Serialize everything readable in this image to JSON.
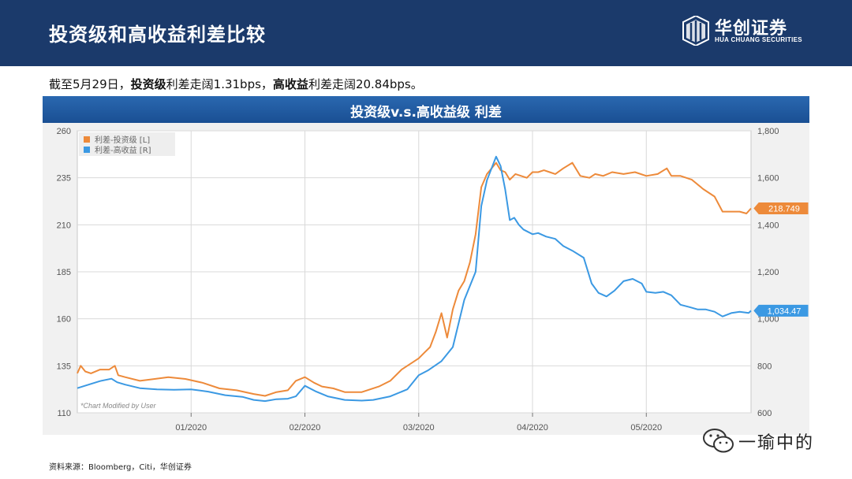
{
  "header": {
    "title": "投资级和高收益利差比较",
    "logo_cn": "华创证券",
    "logo_en": "HUA CHUANG SECURITIES"
  },
  "summary": {
    "prefix": "截至5月29日，",
    "ig_label": "投资级",
    "ig_text": "利差走阔1.31bps，",
    "hy_label": "高收益",
    "hy_text": "利差走阔20.84bps。"
  },
  "chart_title": "投资级v.s.高收益级 利差",
  "source": "资料来源：Bloomberg，Citi，华创证券",
  "watermark": "一瑜中的",
  "colors": {
    "ig": "#ed8a3a",
    "hy": "#3b99e3",
    "header": "#1b3a6b"
  },
  "chart_data": {
    "type": "line",
    "x_ticks": [
      "01/2020",
      "02/2020",
      "03/2020",
      "04/2020",
      "05/2020"
    ],
    "x_tick_pos": [
      1,
      2,
      3,
      4,
      5
    ],
    "x_range": [
      0,
      5.92
    ],
    "y_left": {
      "ticks": [
        "260",
        "235",
        "210",
        "185",
        "160",
        "135",
        "110"
      ],
      "ylim": [
        110,
        260
      ]
    },
    "y_right": {
      "ticks": [
        "1,800",
        "1,600",
        "1,400",
        "1,200",
        "1,000",
        "800",
        "600"
      ],
      "ylim": [
        600,
        1800
      ]
    },
    "legend": [
      "利差-投资级 [L]",
      "利差-高收益 [R]"
    ],
    "legend_position": "top-left",
    "annotation": "*Chart Modified by User",
    "last_labels": {
      "ig": "218.749",
      "hy": "1,034.47"
    },
    "series": [
      {
        "name": "利差-投资级 [L]",
        "axis": "left",
        "x": [
          0,
          0.03,
          0.07,
          0.12,
          0.2,
          0.28,
          0.33,
          0.36,
          0.42,
          0.55,
          0.68,
          0.8,
          0.95,
          1.1,
          1.25,
          1.4,
          1.55,
          1.65,
          1.75,
          1.85,
          1.92,
          2.0,
          2.08,
          2.15,
          2.25,
          2.35,
          2.5,
          2.65,
          2.75,
          2.85,
          2.95,
          3.0,
          3.05,
          3.1,
          3.15,
          3.2,
          3.25,
          3.3,
          3.35,
          3.4,
          3.45,
          3.5,
          3.55,
          3.6,
          3.64,
          3.68,
          3.72,
          3.76,
          3.8,
          3.85,
          3.9,
          3.95,
          4.0,
          4.05,
          4.1,
          4.15,
          4.2,
          4.27,
          4.35,
          4.42,
          4.5,
          4.55,
          4.62,
          4.7,
          4.8,
          4.9,
          5.0,
          5.1,
          5.18,
          5.22,
          5.3,
          5.4,
          5.5,
          5.6,
          5.67,
          5.75,
          5.82,
          5.88,
          5.92
        ],
        "y": [
          131,
          135,
          132,
          131,
          133,
          133,
          135,
          130,
          129,
          127,
          128,
          129,
          128,
          126,
          123,
          122,
          120,
          119,
          121,
          122,
          127,
          129,
          126,
          124,
          123,
          121,
          121,
          124,
          127,
          133,
          137,
          139,
          142,
          145,
          153,
          163,
          150,
          165,
          175,
          180,
          190,
          205,
          230,
          237,
          240,
          243,
          239,
          238,
          234,
          237,
          236,
          235,
          238,
          238,
          239,
          238,
          237,
          240,
          243,
          236,
          235,
          237,
          236,
          238,
          237,
          238,
          236,
          237,
          240,
          236,
          236,
          234,
          229,
          225,
          217,
          217,
          217,
          216,
          218.749
        ]
      },
      {
        "name": "利差-高收益 [R]",
        "axis": "right",
        "x": [
          0,
          0.1,
          0.2,
          0.3,
          0.35,
          0.42,
          0.55,
          0.7,
          0.85,
          1.0,
          1.15,
          1.3,
          1.45,
          1.55,
          1.65,
          1.75,
          1.85,
          1.92,
          2.0,
          2.1,
          2.2,
          2.35,
          2.5,
          2.6,
          2.75,
          2.9,
          3.0,
          3.08,
          3.2,
          3.3,
          3.4,
          3.5,
          3.55,
          3.6,
          3.64,
          3.68,
          3.72,
          3.76,
          3.8,
          3.84,
          3.88,
          3.92,
          3.96,
          4.0,
          4.05,
          4.12,
          4.2,
          4.27,
          4.35,
          4.45,
          4.52,
          4.58,
          4.65,
          4.72,
          4.8,
          4.88,
          4.96,
          5.0,
          5.08,
          5.15,
          5.22,
          5.3,
          5.38,
          5.45,
          5.52,
          5.6,
          5.67,
          5.75,
          5.82,
          5.9,
          5.92
        ],
        "y": [
          705,
          720,
          735,
          745,
          730,
          720,
          705,
          700,
          698,
          700,
          690,
          675,
          668,
          655,
          650,
          658,
          660,
          670,
          715,
          690,
          670,
          655,
          652,
          655,
          670,
          700,
          760,
          780,
          820,
          880,
          1080,
          1200,
          1480,
          1590,
          1640,
          1690,
          1650,
          1550,
          1420,
          1430,
          1400,
          1380,
          1370,
          1360,
          1365,
          1350,
          1340,
          1310,
          1290,
          1260,
          1150,
          1110,
          1095,
          1120,
          1160,
          1170,
          1150,
          1115,
          1110,
          1115,
          1100,
          1060,
          1050,
          1040,
          1040,
          1030,
          1010,
          1025,
          1030,
          1025,
          1034.47
        ]
      }
    ]
  }
}
